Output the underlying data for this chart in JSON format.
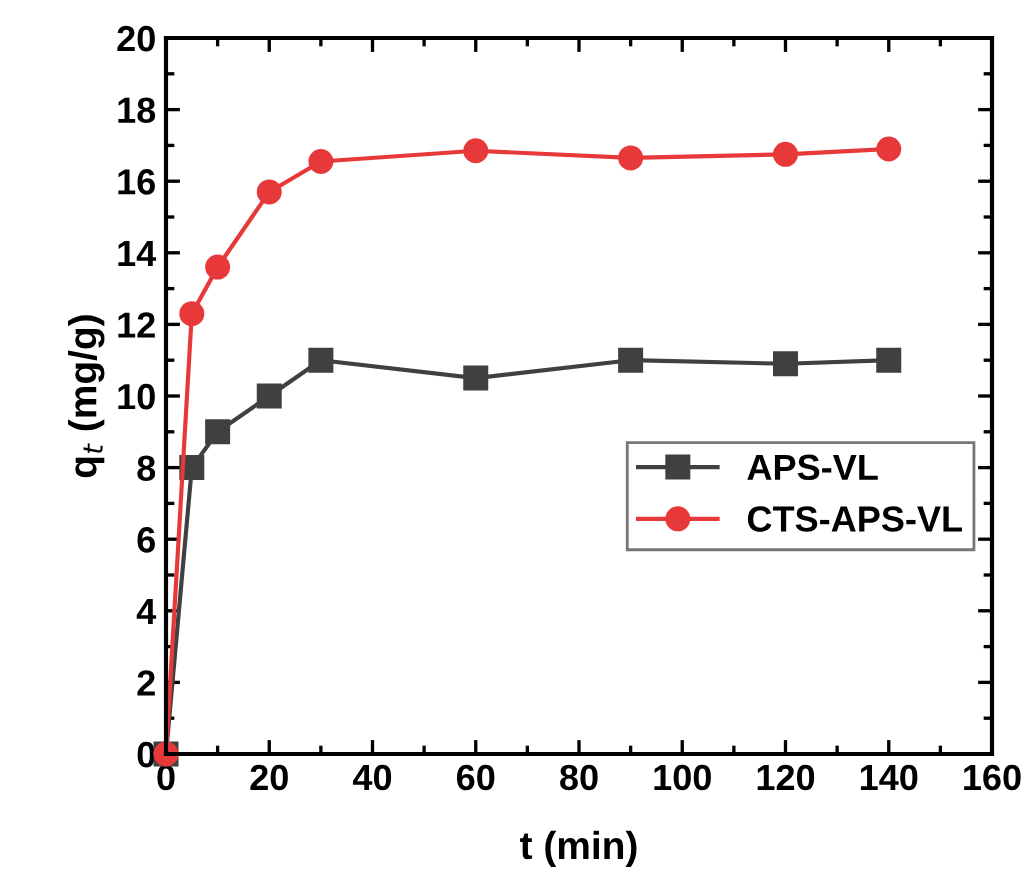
{
  "chart_data": {
    "type": "line",
    "xlabel": "t (min)",
    "ylabel": "q$_{t}$ (mg/g)",
    "x": [
      0,
      5,
      10,
      20,
      30,
      60,
      90,
      120,
      140
    ],
    "series": [
      {
        "name": "APS-VL",
        "color": "#404040",
        "marker": "square",
        "values": [
          0,
          8,
          9,
          10,
          11,
          10.5,
          11,
          10.9,
          11
        ]
      },
      {
        "name": "CTS-APS-VL",
        "color": "#e8393a",
        "marker": "circle",
        "values": [
          0,
          12.3,
          13.6,
          15.7,
          16.55,
          16.85,
          16.65,
          16.75,
          16.9
        ]
      }
    ],
    "xlim": [
      0,
      160
    ],
    "xticks": [
      0,
      20,
      40,
      60,
      80,
      100,
      120,
      140,
      160
    ],
    "ylim": [
      0,
      20
    ],
    "yticks": [
      0,
      2,
      4,
      6,
      8,
      10,
      12,
      14,
      16,
      18,
      20
    ],
    "grid": false,
    "legend": "right",
    "line_style": "solid"
  }
}
